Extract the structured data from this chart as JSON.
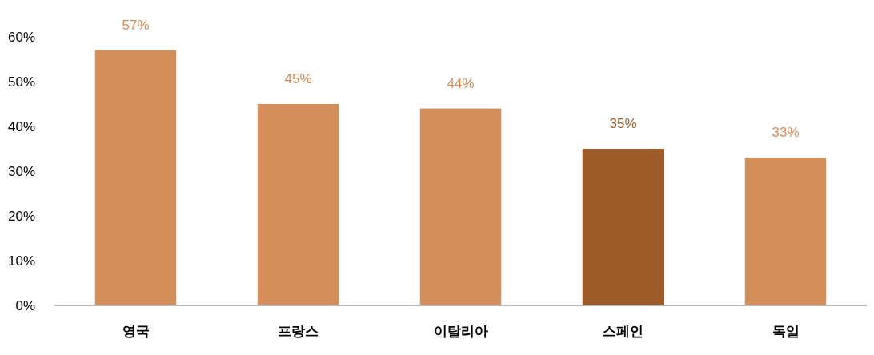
{
  "chart_data": {
    "type": "bar",
    "categories": [
      "영국",
      "프랑스",
      "이탈리아",
      "스페인",
      "독일"
    ],
    "values": [
      57,
      45,
      44,
      35,
      33
    ],
    "colors": [
      "#d48f5b",
      "#d48f5b",
      "#d48f5b",
      "#9e5b2a",
      "#d48f5b"
    ],
    "ylim": [
      0,
      60
    ],
    "yticks": [
      {
        "value": 0,
        "label": "0%"
      },
      {
        "value": 10,
        "label": "10%"
      },
      {
        "value": 20,
        "label": "20%"
      },
      {
        "value": 30,
        "label": "30%"
      },
      {
        "value": 40,
        "label": "40%"
      },
      {
        "value": 50,
        "label": "50%"
      },
      {
        "value": 60,
        "label": "60%"
      }
    ],
    "value_labels": [
      "57%",
      "45%",
      "44%",
      "35%",
      "33%"
    ],
    "grid": false
  }
}
